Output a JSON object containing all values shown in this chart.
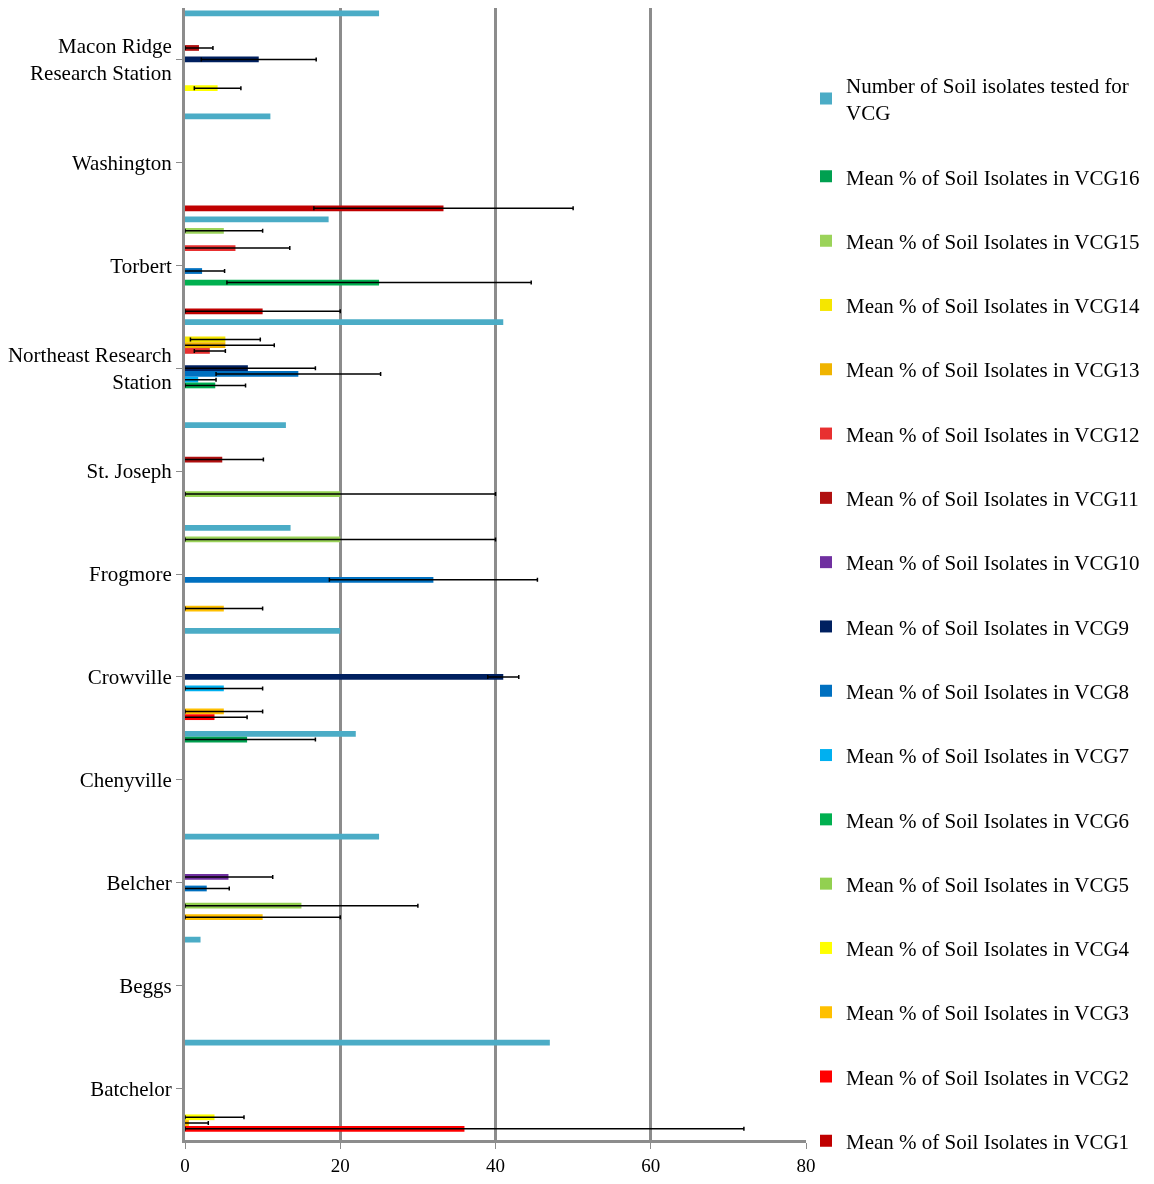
{
  "chart_data": {
    "type": "bar",
    "orientation": "horizontal",
    "categories": [
      "Macon Ridge\nResearch Station",
      "Washington",
      "Torbert",
      "Northeast Research\nStation",
      "St. Joseph",
      "Frogmore",
      "Crowville",
      "Chenyville",
      "Belcher",
      "Beggs",
      "Batchelor"
    ],
    "xlim": [
      0,
      80
    ],
    "xticks": [
      0,
      20,
      40,
      60,
      80
    ],
    "grid": "x",
    "legend": "right",
    "series": [
      {
        "name": "Number of Soil isolates tested for VCG",
        "color": "#4bacc6",
        "values": [
          25,
          11,
          18.5,
          41,
          13,
          13.6,
          20,
          22,
          25,
          2,
          47
        ]
      },
      {
        "name": "Mean % of Soil Isolates in VCG16",
        "color": "#00a050",
        "values": [
          null,
          null,
          null,
          null,
          null,
          null,
          null,
          8,
          null,
          null,
          null
        ],
        "errors": [
          null,
          null,
          null,
          null,
          null,
          null,
          null,
          8.8,
          null,
          null,
          null
        ]
      },
      {
        "name": "Mean % of Soil Isolates in VCG15",
        "color": "#9bd35a",
        "values": [
          null,
          null,
          5,
          null,
          null,
          20,
          null,
          null,
          null,
          null,
          null
        ],
        "errors": [
          null,
          null,
          5,
          null,
          null,
          20,
          null,
          null,
          null,
          null,
          null
        ]
      },
      {
        "name": "Mean % of Soil Isolates in VCG14",
        "color": "#f5e600",
        "values": [
          null,
          null,
          null,
          5.2,
          null,
          null,
          null,
          null,
          null,
          null,
          null
        ],
        "errors": [
          null,
          null,
          null,
          4.5,
          null,
          null,
          null,
          null,
          null,
          null,
          null
        ]
      },
      {
        "name": "Mean % of Soil Isolates in VCG13",
        "color": "#f0b400",
        "values": [
          null,
          null,
          null,
          5.2,
          null,
          null,
          null,
          null,
          null,
          null,
          null
        ],
        "errors": [
          null,
          null,
          null,
          6.3,
          null,
          null,
          null,
          null,
          null,
          null,
          null
        ]
      },
      {
        "name": "Mean % of Soil Isolates in VCG12",
        "color": "#e83030",
        "values": [
          null,
          null,
          6.5,
          3.2,
          null,
          null,
          null,
          null,
          null,
          null,
          null
        ],
        "errors": [
          null,
          null,
          7,
          2,
          null,
          null,
          null,
          null,
          null,
          null,
          null
        ]
      },
      {
        "name": "Mean % of Soil Isolates in VCG11",
        "color": "#b01010",
        "values": [
          1.8,
          null,
          null,
          null,
          4.8,
          null,
          null,
          null,
          null,
          null,
          null
        ],
        "errors": [
          1.8,
          null,
          null,
          null,
          5.3,
          null,
          null,
          null,
          null,
          null,
          null
        ]
      },
      {
        "name": "Mean % of Soil Isolates in VCG10",
        "color": "#7030a0",
        "values": [
          null,
          null,
          null,
          null,
          null,
          null,
          null,
          null,
          5.6,
          null,
          null
        ],
        "errors": [
          null,
          null,
          null,
          null,
          null,
          null,
          null,
          null,
          5.7,
          null,
          null
        ]
      },
      {
        "name": "Mean % of Soil Isolates in VCG9",
        "color": "#002060",
        "values": [
          9.5,
          null,
          null,
          8.1,
          null,
          null,
          41,
          null,
          null,
          null,
          null
        ],
        "errors": [
          7.4,
          null,
          null,
          8.7,
          null,
          null,
          2,
          null,
          null,
          null,
          null
        ]
      },
      {
        "name": "Mean % of Soil Isolates in VCG8",
        "color": "#0070c0",
        "values": [
          null,
          null,
          2.2,
          14.6,
          null,
          32,
          null,
          null,
          2.8,
          null,
          null
        ],
        "errors": [
          null,
          null,
          2.9,
          10.6,
          null,
          13.4,
          null,
          null,
          2.9,
          null,
          null
        ]
      },
      {
        "name": "Mean % of Soil Isolates in VCG7",
        "color": "#00b0f0",
        "values": [
          null,
          null,
          null,
          1.7,
          null,
          null,
          5,
          null,
          null,
          null,
          null
        ],
        "errors": [
          null,
          null,
          null,
          2.3,
          null,
          null,
          5,
          null,
          null,
          null,
          null
        ]
      },
      {
        "name": "Mean % of Soil Isolates in VCG6",
        "color": "#00b050",
        "values": [
          null,
          null,
          25,
          3.9,
          null,
          null,
          null,
          null,
          null,
          null,
          null
        ],
        "errors": [
          null,
          null,
          19.6,
          3.9,
          null,
          null,
          null,
          null,
          null,
          null,
          null
        ]
      },
      {
        "name": "Mean % of Soil Isolates in VCG5",
        "color": "#92d050",
        "values": [
          null,
          null,
          null,
          null,
          20,
          null,
          null,
          null,
          15,
          null,
          null
        ],
        "errors": [
          null,
          null,
          null,
          null,
          20,
          null,
          null,
          null,
          15,
          null,
          null
        ]
      },
      {
        "name": "Mean % of Soil Isolates in VCG4",
        "color": "#ffff00",
        "values": [
          4.2,
          null,
          null,
          null,
          null,
          null,
          null,
          null,
          null,
          null,
          3.8
        ],
        "errors": [
          3,
          null,
          null,
          null,
          null,
          null,
          null,
          null,
          null,
          null,
          3.8
        ]
      },
      {
        "name": "Mean % of Soil Isolates in VCG3",
        "color": "#ffc000",
        "values": [
          null,
          null,
          null,
          null,
          null,
          5,
          5,
          null,
          10,
          null,
          0.5
        ],
        "errors": [
          null,
          null,
          null,
          null,
          null,
          5,
          5,
          null,
          10,
          null,
          2.5
        ]
      },
      {
        "name": "Mean % of Soil Isolates in VCG2",
        "color": "#ff0000",
        "values": [
          null,
          null,
          null,
          null,
          null,
          null,
          3.8,
          null,
          null,
          null,
          36
        ],
        "errors": [
          null,
          null,
          null,
          null,
          null,
          null,
          4.2,
          null,
          null,
          null,
          36
        ]
      },
      {
        "name": "Mean % of Soil Isolates in VCG1",
        "color": "#c00000",
        "values": [
          null,
          33.3,
          10,
          null,
          null,
          null,
          null,
          null,
          null,
          null,
          null
        ],
        "errors": [
          null,
          16.7,
          10,
          null,
          null,
          null,
          null,
          null,
          null,
          null,
          null
        ]
      }
    ]
  }
}
